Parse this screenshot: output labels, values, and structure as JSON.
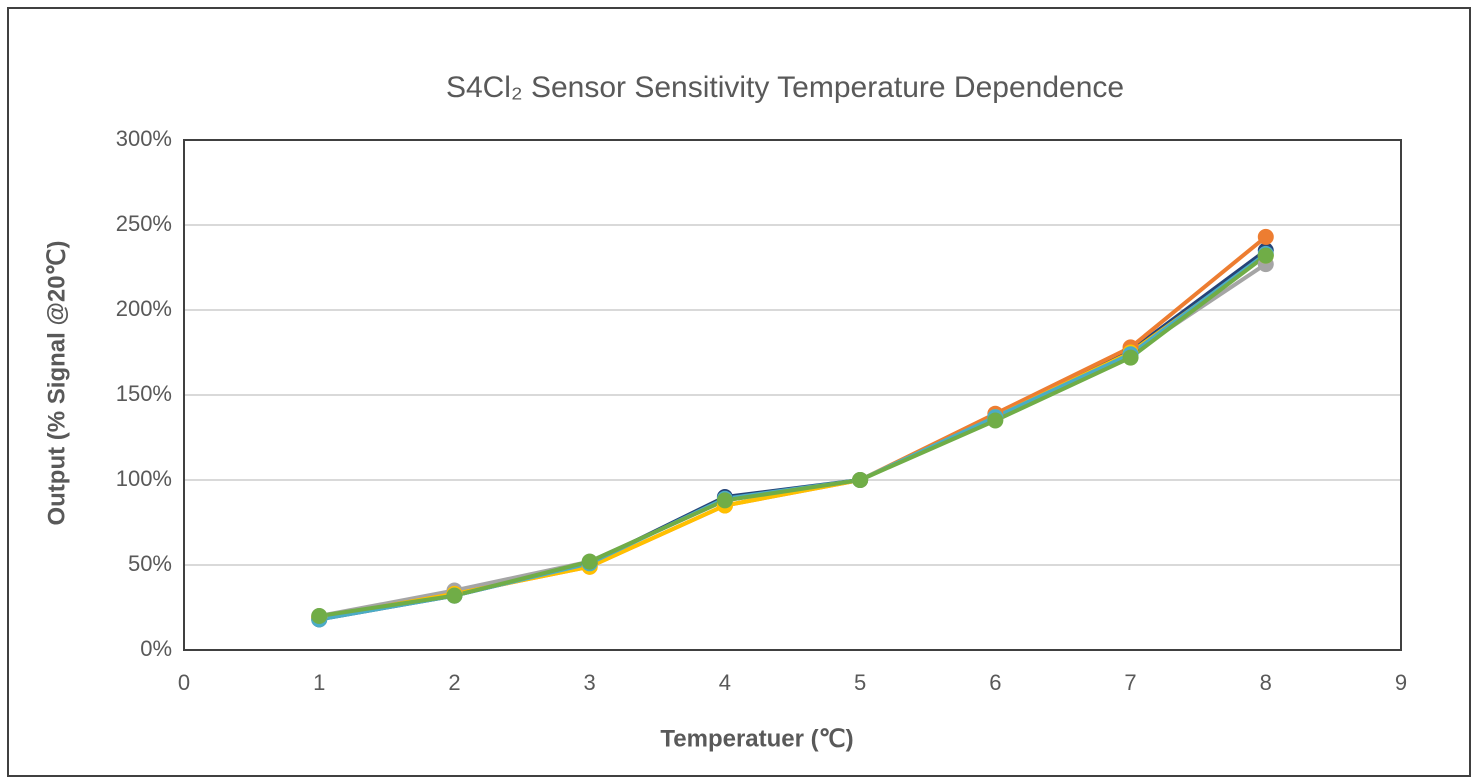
{
  "chart_data": {
    "type": "line",
    "title": "S4Cl₂ Sensor Sensitivity Temperature Dependence",
    "x_label": "Temperatuer (℃)",
    "y_label": "Output (% Signal @20℃)",
    "x": [
      1,
      2,
      3,
      4,
      5,
      6,
      7,
      8
    ],
    "series": [
      {
        "color": "#a5a5a5",
        "values": [
          20,
          35,
          52,
          88,
          100,
          136,
          174,
          227
        ]
      },
      {
        "color": "#264478",
        "values": [
          18,
          32,
          51,
          90,
          100,
          137,
          176,
          235
        ]
      },
      {
        "color": "#ed7d31",
        "values": [
          19,
          33,
          49,
          85,
          100,
          139,
          178,
          243
        ]
      },
      {
        "color": "#ffc000",
        "values": [
          19,
          33,
          49,
          85,
          100,
          137,
          175,
          232
        ]
      },
      {
        "color": "#4bacc6",
        "values": [
          18,
          32,
          51,
          89,
          100,
          137,
          174,
          233
        ]
      },
      {
        "color": "#70ad47",
        "values": [
          20,
          32,
          52,
          88,
          100,
          135,
          172,
          232
        ]
      }
    ],
    "xlim": [
      0,
      9
    ],
    "xticks": [
      0,
      1,
      2,
      3,
      4,
      5,
      6,
      7,
      8,
      9
    ],
    "ylim": [
      0,
      300
    ],
    "yticks": [
      {
        "value": 0,
        "label": "0%"
      },
      {
        "value": 50,
        "label": "50%"
      },
      {
        "value": 100,
        "label": "100%"
      },
      {
        "value": 150,
        "label": "150%"
      },
      {
        "value": 200,
        "label": "200%"
      },
      {
        "value": 250,
        "label": "250%"
      },
      {
        "value": 300,
        "label": "300%"
      }
    ],
    "grid": true
  }
}
